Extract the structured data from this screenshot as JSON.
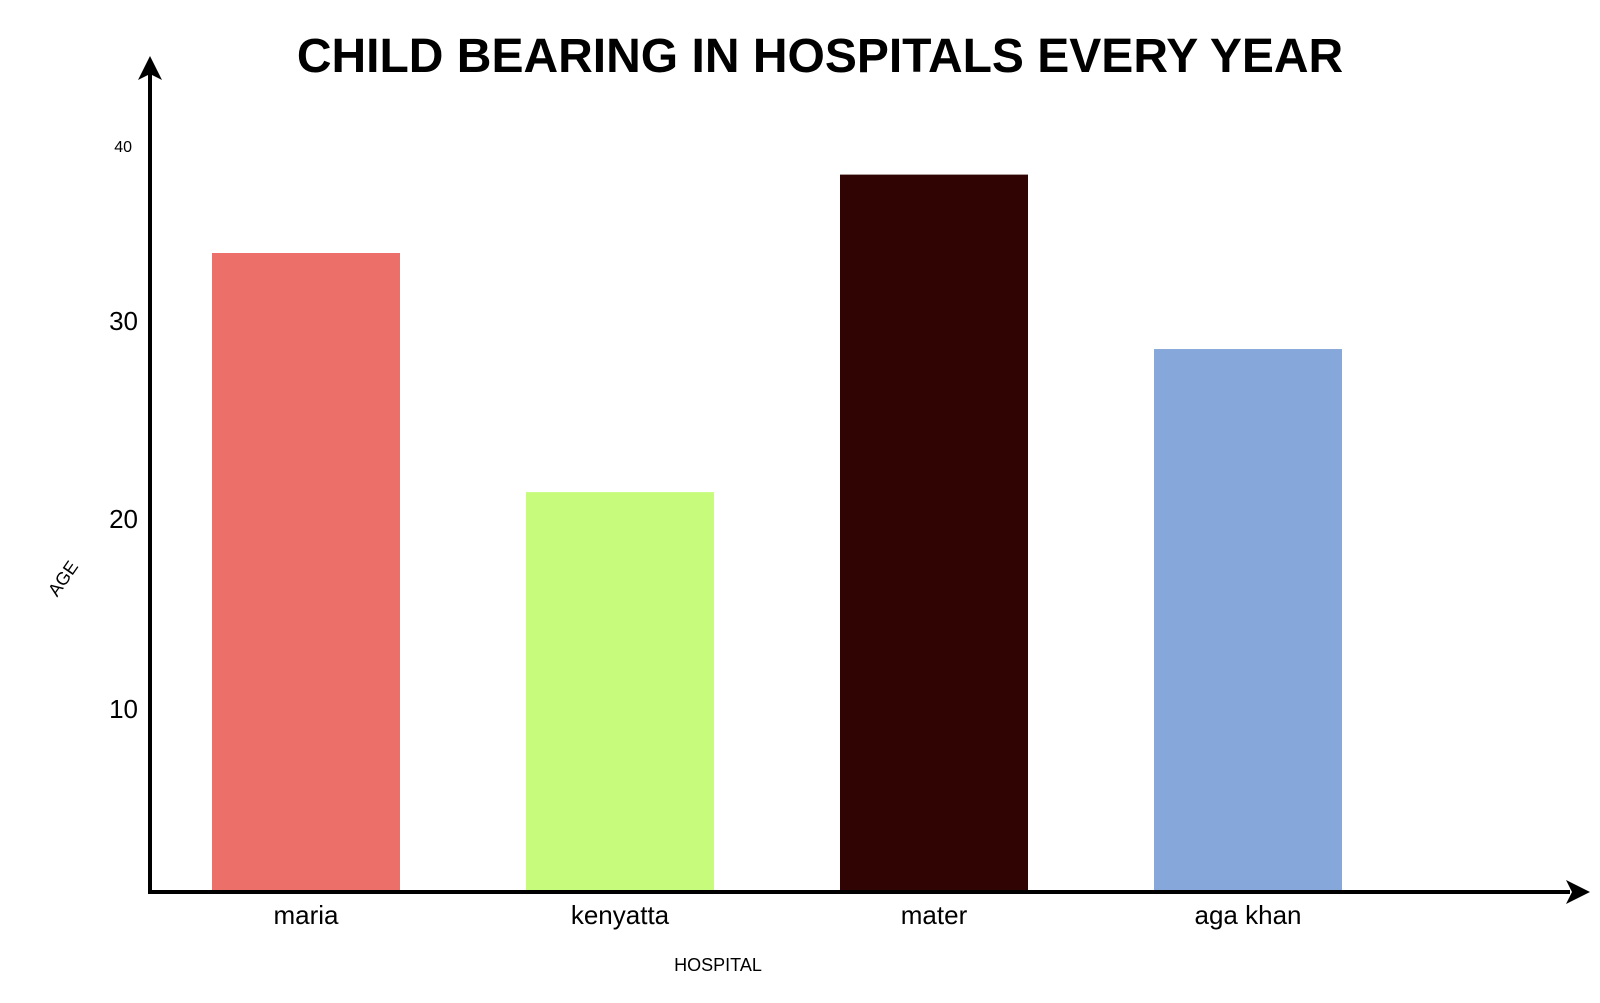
{
  "chart_data": {
    "type": "bar",
    "title": "CHILD BEARING IN HOSPITALS EVERY YEAR",
    "xlabel": "HOSPITAL",
    "ylabel": "AGE",
    "categories": [
      "maria",
      "kenyatta",
      "mater",
      "aga khan"
    ],
    "values": [
      32.5,
      20.3,
      36.5,
      27.6
    ],
    "colors": [
      "#ec7069",
      "#c6fb7b",
      "#2f0403",
      "#86a7da"
    ],
    "yticks": [
      {
        "value": 10,
        "label": "10"
      },
      {
        "value": 20,
        "label": "20"
      },
      {
        "value": 30,
        "label": "30"
      },
      {
        "value": 40,
        "label": "40"
      }
    ],
    "ylim": [
      0,
      44
    ],
    "grid": false,
    "legend": "none"
  }
}
